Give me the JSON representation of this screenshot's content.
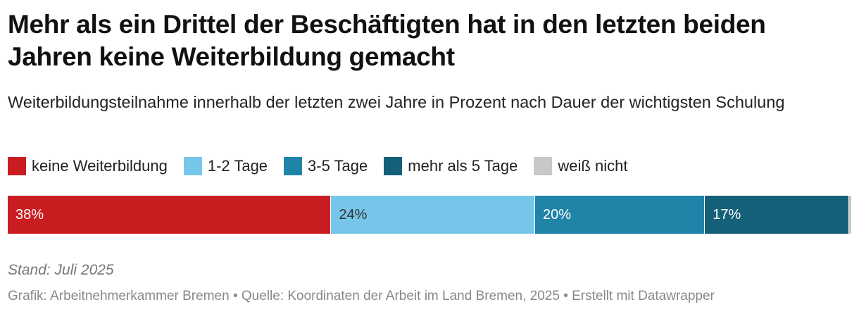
{
  "header": {
    "title": "Mehr als ein Drittel der Beschäftigten hat in den letzten beiden Jahren keine Weiterbildung gemacht",
    "subtitle": "Weiterbildungsteilnahme innerhalb der letzten zwei Jahre in Prozent nach Dauer der wichtigsten Schulung"
  },
  "chart_data": {
    "type": "bar",
    "orientation": "horizontal-stacked",
    "title": "Mehr als ein Drittel der Beschäftigten hat in den letzten beiden Jahren keine Weiterbildung gemacht",
    "subtitle": "Weiterbildungsteilnahme innerhalb der letzten zwei Jahre in Prozent nach Dauer der wichtigsten Schulung",
    "unit": "%",
    "legend_position": "top-left",
    "series": [
      {
        "name": "keine Weiterbildung",
        "value": 38,
        "label": "38%",
        "color": "#c91d21",
        "text_color": "#ffffff"
      },
      {
        "name": "1-2 Tage",
        "value": 24,
        "label": "24%",
        "color": "#76c6ea",
        "text_color": "#333333"
      },
      {
        "name": "3-5 Tage",
        "value": 20,
        "label": "20%",
        "color": "#1f84a8",
        "text_color": "#ffffff"
      },
      {
        "name": "mehr als 5 Tage",
        "value": 17,
        "label": "17%",
        "color": "#156079",
        "text_color": "#ffffff"
      },
      {
        "name": "weiß nicht",
        "value": 0.3,
        "label": "",
        "color": "#c8c8c8",
        "text_color": "#333333"
      }
    ]
  },
  "footer": {
    "stand": "Stand: Juli 2025",
    "source": "Grafik: Arbeitnehmerkammer Bremen • Quelle: Koordinaten der Arbeit im Land Bremen, 2025 • Erstellt mit Datawrapper"
  }
}
